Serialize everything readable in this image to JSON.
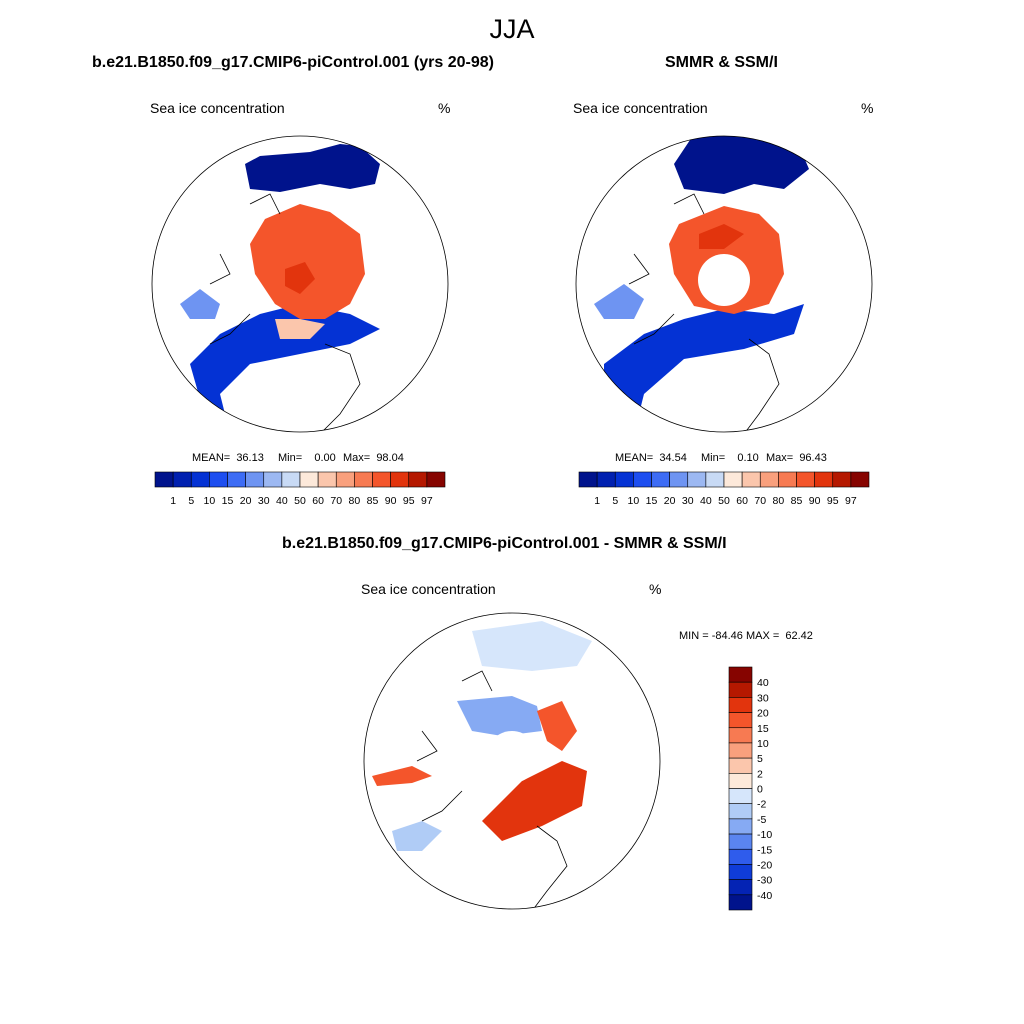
{
  "page": {
    "title": "JJA"
  },
  "panels": [
    {
      "title": "b.e21.B1850.f09_g17.CMIP6-piControl.001 (yrs 20-98)",
      "variable": "Sea ice concentration",
      "units": "%",
      "stats": {
        "mean": "MEAN=  36.13",
        "min": "Min=    0.00",
        "max": "Max=  98.04"
      }
    },
    {
      "title": "SMMR & SSM/I",
      "variable": "Sea ice concentration",
      "units": "%",
      "stats": {
        "mean": "MEAN=  34.54",
        "min": "Min=    0.10",
        "max": "Max=  96.43"
      }
    },
    {
      "title": "b.e21.B1850.f09_g17.CMIP6-piControl.001 - SMMR & SSM/I",
      "variable": "Sea ice concentration",
      "units": "%",
      "stats": {
        "minmax": "MIN = -84.46 MAX =  62.42"
      }
    }
  ],
  "colorbar_concentration": {
    "labels": [
      "1",
      "5",
      "10",
      "15",
      "20",
      "30",
      "40",
      "50",
      "60",
      "70",
      "80",
      "85",
      "90",
      "95",
      "97"
    ],
    "colors": [
      "#00138c",
      "#0020b0",
      "#0432d4",
      "#1d4ef0",
      "#3d6cf5",
      "#6e94f2",
      "#9cb8f2",
      "#c8daf5",
      "#fde9da",
      "#fbc6ac",
      "#f9a07d",
      "#f77a52",
      "#f4552b",
      "#e2340d",
      "#b51800",
      "#860400"
    ]
  },
  "colorbar_difference": {
    "labels": [
      "40",
      "30",
      "20",
      "15",
      "10",
      "5",
      "2",
      "0",
      "-2",
      "-5",
      "-10",
      "-15",
      "-20",
      "-30",
      "-40"
    ],
    "colors": [
      "#860400",
      "#b51800",
      "#e2340d",
      "#f4552b",
      "#f77a52",
      "#f9a07d",
      "#fbc6ac",
      "#fde9da",
      "#d6e6fb",
      "#b0ccf6",
      "#86aaf3",
      "#5a85f0",
      "#2f5cec",
      "#0f3cd8",
      "#0423b4",
      "#00138c"
    ]
  },
  "colors": {
    "ice_high": "#f4552b",
    "ice_core": "#e2340d",
    "ice_mid": "#fbc6ac",
    "open_low": "#00138c",
    "open_mid": "#1d4ef0",
    "diff_pos": "#e2340d",
    "diff_neg": "#86aaf3"
  }
}
